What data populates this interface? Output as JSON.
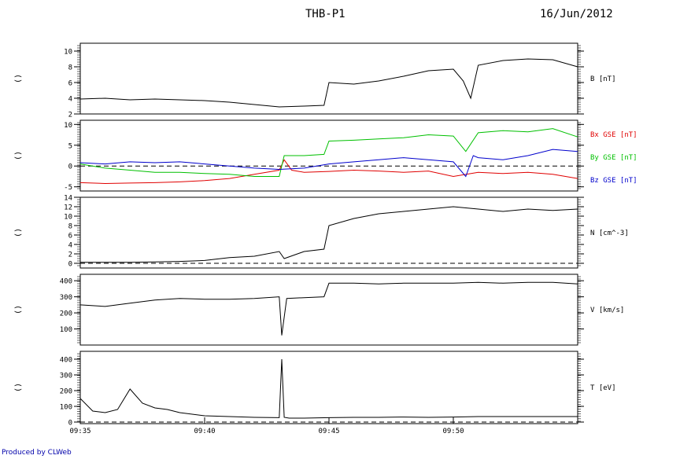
{
  "header": {
    "spacecraft": "THB-P1",
    "date": "16/Jun/2012"
  },
  "credit": "Produced by CLWeb",
  "colors": {
    "black": "#000000",
    "red": "#e00000",
    "green": "#00c000",
    "blue": "#0000cc",
    "credit": "#0000aa"
  },
  "chart_data": [
    {
      "type": "line",
      "panel": "B",
      "left_label": "()",
      "ylim": [
        2,
        11
      ],
      "yticks": [
        2,
        4,
        6,
        8,
        10
      ],
      "xlim": [
        "09:35",
        "09:55"
      ],
      "series": [
        {
          "name": "B [nT]",
          "color": "#000000",
          "x": [
            "09:35",
            "09:36",
            "09:37",
            "09:38",
            "09:39",
            "09:40",
            "09:41",
            "09:42",
            "09:43",
            "09:44",
            "09:44.8",
            "09:45",
            "09:46",
            "09:47",
            "09:48",
            "09:49",
            "09:50",
            "09:50.4",
            "09:50.7",
            "09:51",
            "09:52",
            "09:53",
            "09:54",
            "09:55"
          ],
          "y": [
            3.9,
            4.0,
            3.8,
            3.9,
            3.8,
            3.7,
            3.5,
            3.2,
            2.9,
            3.0,
            3.1,
            6.0,
            5.8,
            6.2,
            6.8,
            7.5,
            7.7,
            6.2,
            4.0,
            8.2,
            8.8,
            9.0,
            8.9,
            8.0
          ]
        }
      ]
    },
    {
      "type": "line",
      "panel": "B GSE components",
      "left_label": "()",
      "ylim": [
        -6,
        11
      ],
      "yticks": [
        -5,
        0,
        5,
        10
      ],
      "zero_line": true,
      "xlim": [
        "09:35",
        "09:55"
      ],
      "series": [
        {
          "name": "Bx GSE [nT]",
          "color": "#e00000",
          "x": [
            "09:35",
            "09:36",
            "09:37",
            "09:38",
            "09:39",
            "09:40",
            "09:41",
            "09:42",
            "09:43",
            "09:43.2",
            "09:43.5",
            "09:44",
            "09:45",
            "09:46",
            "09:47",
            "09:48",
            "09:49",
            "09:50",
            "09:51",
            "09:52",
            "09:53",
            "09:54",
            "09:55"
          ],
          "y": [
            -4.0,
            -4.2,
            -4.1,
            -4.0,
            -3.8,
            -3.5,
            -3.0,
            -2.0,
            -1.0,
            1.5,
            -1.0,
            -1.5,
            -1.3,
            -1.0,
            -1.2,
            -1.5,
            -1.2,
            -2.5,
            -1.5,
            -1.8,
            -1.5,
            -2.0,
            -3.0
          ]
        },
        {
          "name": "By GSE [nT]",
          "color": "#00c000",
          "x": [
            "09:35",
            "09:36",
            "09:37",
            "09:38",
            "09:39",
            "09:40",
            "09:41",
            "09:42",
            "09:43",
            "09:43.2",
            "09:44",
            "09:44.8",
            "09:45",
            "09:46",
            "09:47",
            "09:48",
            "09:49",
            "09:50",
            "09:50.5",
            "09:51",
            "09:52",
            "09:53",
            "09:54",
            "09:55"
          ],
          "y": [
            0.5,
            -0.5,
            -1.0,
            -1.5,
            -1.5,
            -1.8,
            -2.0,
            -2.5,
            -2.5,
            2.5,
            2.5,
            2.8,
            6.0,
            6.2,
            6.5,
            6.8,
            7.5,
            7.2,
            3.5,
            8.0,
            8.5,
            8.2,
            9.0,
            7.0
          ]
        },
        {
          "name": "Bz GSE [nT]",
          "color": "#0000cc",
          "x": [
            "09:35",
            "09:36",
            "09:37",
            "09:38",
            "09:39",
            "09:40",
            "09:41",
            "09:42",
            "09:43",
            "09:44",
            "09:45",
            "09:46",
            "09:47",
            "09:48",
            "09:49",
            "09:50",
            "09:50.5",
            "09:50.8",
            "09:51",
            "09:52",
            "09:53",
            "09:54",
            "09:55"
          ],
          "y": [
            0.8,
            0.5,
            1.0,
            0.8,
            1.0,
            0.5,
            0.0,
            -0.5,
            -0.8,
            -0.5,
            0.5,
            1.0,
            1.5,
            2.0,
            1.5,
            1.0,
            -2.5,
            2.5,
            2.0,
            1.5,
            2.5,
            4.0,
            3.5
          ]
        }
      ]
    },
    {
      "type": "line",
      "panel": "N",
      "left_label": "()",
      "ylim": [
        -1,
        14
      ],
      "yticks": [
        0,
        2,
        4,
        6,
        8,
        10,
        12,
        14
      ],
      "zero_line": true,
      "xlim": [
        "09:35",
        "09:55"
      ],
      "series": [
        {
          "name": "N [cm^-3]",
          "color": "#000000",
          "x": [
            "09:35",
            "09:36",
            "09:37",
            "09:38",
            "09:39",
            "09:40",
            "09:41",
            "09:42",
            "09:43",
            "09:43.2",
            "09:44",
            "09:44.8",
            "09:45",
            "09:46",
            "09:47",
            "09:48",
            "09:49",
            "09:50",
            "09:51",
            "09:52",
            "09:53",
            "09:54",
            "09:55"
          ],
          "y": [
            0.2,
            0.2,
            0.2,
            0.3,
            0.4,
            0.6,
            1.2,
            1.5,
            2.5,
            1.0,
            2.5,
            3.0,
            8.0,
            9.5,
            10.5,
            11.0,
            11.5,
            12.0,
            11.5,
            11.0,
            11.5,
            11.2,
            11.5
          ]
        }
      ]
    },
    {
      "type": "line",
      "panel": "V",
      "left_label": "()",
      "ylim": [
        0,
        440
      ],
      "yticks": [
        100,
        200,
        300,
        400
      ],
      "xlim": [
        "09:35",
        "09:55"
      ],
      "series": [
        {
          "name": "V [km/s]",
          "color": "#000000",
          "x": [
            "09:35",
            "09:36",
            "09:37",
            "09:38",
            "09:39",
            "09:40",
            "09:41",
            "09:42",
            "09:43",
            "09:43.1",
            "09:43.3",
            "09:44",
            "09:44.8",
            "09:45",
            "09:46",
            "09:47",
            "09:48",
            "09:49",
            "09:50",
            "09:51",
            "09:52",
            "09:53",
            "09:54",
            "09:55"
          ],
          "y": [
            250,
            240,
            260,
            280,
            290,
            285,
            285,
            290,
            300,
            60,
            290,
            295,
            300,
            385,
            385,
            380,
            385,
            385,
            385,
            390,
            385,
            390,
            390,
            380
          ]
        }
      ]
    },
    {
      "type": "line",
      "panel": "T",
      "left_label": "()",
      "ylim": [
        -10,
        450
      ],
      "yticks": [
        0,
        100,
        200,
        300,
        400
      ],
      "zero_line": true,
      "xlim": [
        "09:35",
        "09:55"
      ],
      "xticks": [
        "09:35",
        "09:40",
        "09:45",
        "09:50"
      ],
      "series": [
        {
          "name": "T [eV]",
          "color": "#000000",
          "x": [
            "09:35",
            "09:35.5",
            "09:36",
            "09:36.5",
            "09:37",
            "09:37.5",
            "09:38",
            "09:38.5",
            "09:39",
            "09:40",
            "09:41",
            "09:42",
            "09:43",
            "09:43.1",
            "09:43.2",
            "09:43.4",
            "09:44",
            "09:45",
            "09:46",
            "09:47",
            "09:48",
            "09:49",
            "09:50",
            "09:51",
            "09:52",
            "09:53",
            "09:54",
            "09:55"
          ],
          "y": [
            150,
            70,
            60,
            80,
            210,
            120,
            90,
            80,
            60,
            40,
            35,
            30,
            28,
            400,
            30,
            25,
            25,
            28,
            30,
            30,
            32,
            30,
            32,
            35,
            35,
            35,
            35,
            35
          ]
        }
      ]
    }
  ]
}
